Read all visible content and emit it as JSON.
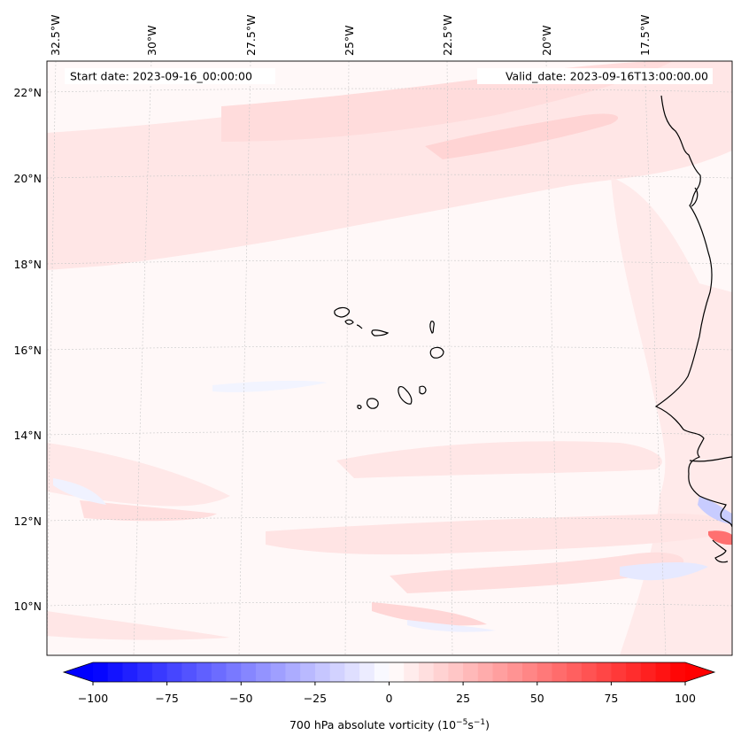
{
  "header": {
    "start_date": "Start date: 2023-09-16_00:00:00",
    "valid_date": "Valid_date: 2023-09-16T13:00:00.00"
  },
  "map": {
    "longitude_labels": [
      "32.5°W",
      "30°W",
      "27.5°W",
      "25°W",
      "22.5°W",
      "20°W",
      "17.5°W"
    ],
    "latitude_labels": [
      "22°N",
      "20°N",
      "18°N",
      "16°N",
      "14°N",
      "12°N",
      "10°N"
    ],
    "field_background_color": "#fff8f8",
    "coastline_color": "#000000",
    "gridline_style": "dashed light gray"
  },
  "colorbar": {
    "label_main": "700 hPa absolute vorticity (10",
    "label_exp1": "−5",
    "label_mid": "s",
    "label_exp2": "−1",
    "label_end": ")",
    "tick_labels": [
      "−100",
      "−75",
      "−50",
      "−25",
      "0",
      "25",
      "50",
      "75",
      "100"
    ],
    "range": [
      -100,
      100
    ],
    "step": 5,
    "cmap": "bwr",
    "min_color": "#0000ff",
    "mid_color": "#ffffff",
    "max_color": "#ff0000"
  }
}
